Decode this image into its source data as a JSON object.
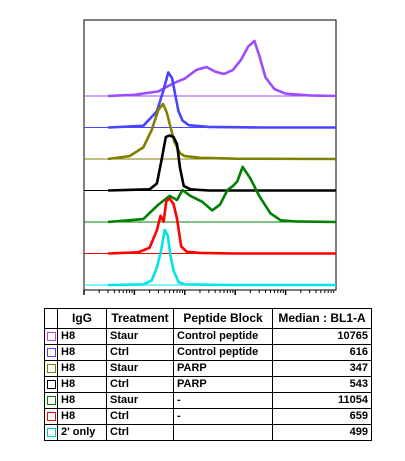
{
  "chart_data": {
    "type": "area",
    "title": "",
    "xlabel": "",
    "ylabel": "",
    "x_scale": "log",
    "xlim": [
      10,
      1000000
    ],
    "series": [
      {
        "name": "H8 Staur Control peptide",
        "color": "#9b4dff",
        "x": [
          30,
          100,
          300,
          600,
          1000,
          1700,
          2700,
          4000,
          6000,
          9000,
          13000,
          18000,
          24000,
          30000,
          40000,
          60000,
          100000,
          300000,
          1000000
        ],
        "y": [
          0,
          0.02,
          0.08,
          0.22,
          0.3,
          0.45,
          0.5,
          0.42,
          0.38,
          0.45,
          0.62,
          0.85,
          0.95,
          0.7,
          0.32,
          0.12,
          0.04,
          0.01,
          0
        ]
      },
      {
        "name": "H8 Ctrl Control peptide",
        "color": "#4b44ff",
        "x": [
          30,
          150,
          280,
          380,
          470,
          560,
          650,
          750,
          900,
          1200,
          3000,
          30000,
          1000000
        ],
        "y": [
          0,
          0.03,
          0.28,
          0.65,
          0.95,
          0.85,
          0.55,
          0.28,
          0.12,
          0.04,
          0.01,
          0,
          0
        ]
      },
      {
        "name": "H8 Staur PARP",
        "color": "#808000",
        "x": [
          30,
          80,
          150,
          220,
          300,
          370,
          440,
          520,
          620,
          800,
          1000,
          2000,
          10000,
          1000000
        ],
        "y": [
          0,
          0.05,
          0.2,
          0.5,
          0.85,
          0.95,
          0.8,
          0.55,
          0.3,
          0.1,
          0.05,
          0.02,
          0.005,
          0
        ]
      },
      {
        "name": "H8 Ctrl PARP",
        "color": "#000000",
        "x": [
          30,
          200,
          280,
          350,
          420,
          500,
          600,
          700,
          800,
          950,
          1300,
          3000,
          1000000
        ],
        "y": [
          0,
          0.02,
          0.12,
          0.55,
          0.92,
          0.95,
          0.92,
          0.8,
          0.4,
          0.08,
          0.02,
          0,
          0
        ]
      },
      {
        "name": "H8 Staur -",
        "color": "#008000",
        "x": [
          30,
          150,
          300,
          500,
          700,
          900,
          1300,
          2200,
          3500,
          5000,
          7000,
          9000,
          11000,
          14000,
          20000,
          30000,
          50000,
          80000,
          150000,
          1000000
        ],
        "y": [
          0,
          0.05,
          0.3,
          0.45,
          0.38,
          0.55,
          0.45,
          0.35,
          0.2,
          0.3,
          0.55,
          0.62,
          0.7,
          0.95,
          0.75,
          0.45,
          0.15,
          0.03,
          0.01,
          0
        ]
      },
      {
        "name": "H8 Ctrl -",
        "color": "#ff0000",
        "x": [
          30,
          120,
          200,
          280,
          330,
          380,
          430,
          500,
          600,
          700,
          850,
          1100,
          2000,
          10000,
          1000000
        ],
        "y": [
          0,
          0.02,
          0.1,
          0.4,
          0.65,
          0.55,
          0.9,
          0.95,
          0.85,
          0.6,
          0.12,
          0.03,
          0.01,
          0,
          0
        ]
      },
      {
        "name": "2' only Ctrl",
        "color": "#00e5e5",
        "x": [
          30,
          150,
          220,
          280,
          340,
          400,
          460,
          520,
          600,
          750,
          1000,
          10000,
          1000000
        ],
        "y": [
          0,
          0.01,
          0.08,
          0.3,
          0.6,
          0.95,
          0.85,
          0.5,
          0.25,
          0.05,
          0.01,
          0,
          0
        ]
      }
    ]
  },
  "table": {
    "headers": [
      "",
      "IgG",
      "Treatment",
      "Peptide Block",
      "Median : BL1-A"
    ],
    "rows": [
      {
        "color": "#cc44cc",
        "igg": "H8",
        "treatment": "Staur",
        "peptide": "Control peptide",
        "median": "10765"
      },
      {
        "color": "#4b44ff",
        "igg": "H8",
        "treatment": "Ctrl",
        "peptide": "Control peptide",
        "median": "616"
      },
      {
        "color": "#808000",
        "igg": "H8",
        "treatment": "Staur",
        "peptide": "PARP",
        "median": "347"
      },
      {
        "color": "#000000",
        "igg": "H8",
        "treatment": "Ctrl",
        "peptide": "PARP",
        "median": "543"
      },
      {
        "color": "#008000",
        "igg": "H8",
        "treatment": "Staur",
        "peptide": "-",
        "median": "11054"
      },
      {
        "color": "#ff0000",
        "igg": "H8",
        "treatment": "Ctrl",
        "peptide": "-",
        "median": "659"
      },
      {
        "color": "#00cccc",
        "igg": "2' only",
        "treatment": "Ctrl",
        "peptide": "",
        "median": "499"
      }
    ]
  }
}
